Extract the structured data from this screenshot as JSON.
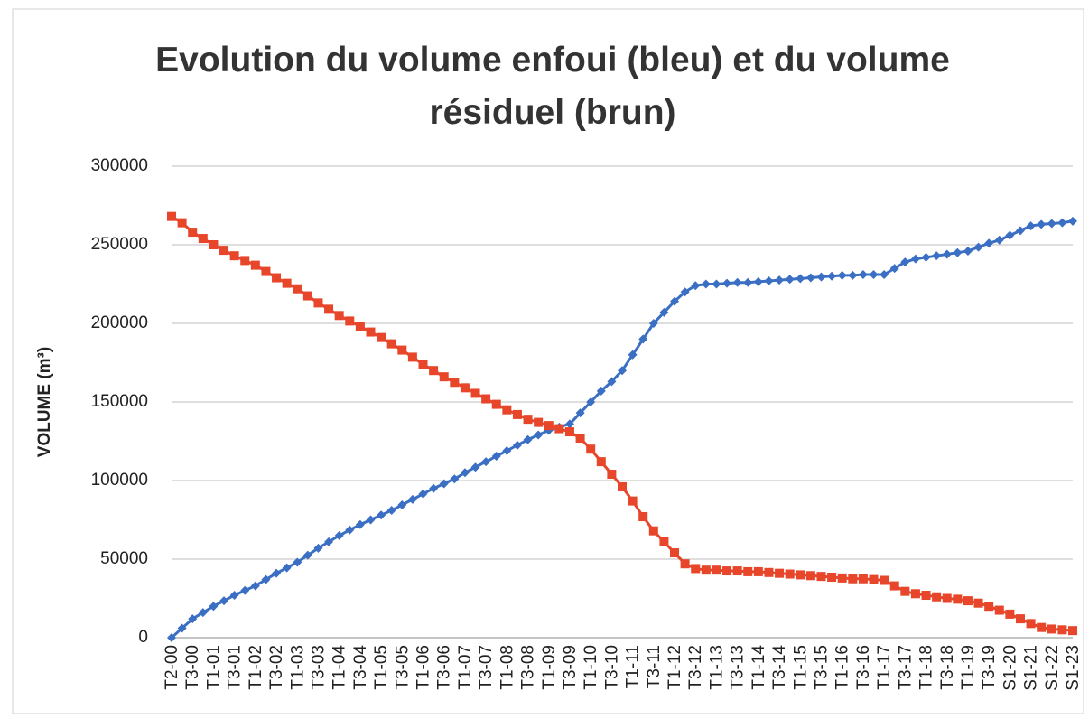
{
  "chart_data": {
    "type": "line",
    "title": "Evolution du volume enfoui (bleu) et du volume résiduel (brun)",
    "ylabel": "VOLUME  (m³)",
    "categories": [
      "T2-00",
      null,
      "T3-00",
      null,
      "T1-01",
      null,
      "T3-01",
      null,
      "T1-02",
      null,
      "T3-02",
      null,
      "T1-03",
      null,
      "T3-03",
      null,
      "T1-04",
      null,
      "T3-04",
      null,
      "T1-05",
      null,
      "T3-05",
      null,
      "T1-06",
      null,
      "T3-06",
      null,
      "T1-07",
      null,
      "T3-07",
      null,
      "T1-08",
      null,
      "T3-08",
      null,
      "T1-09",
      null,
      "T3-09",
      null,
      "T1-10",
      null,
      "T3-10",
      null,
      "T1-11",
      null,
      "T3-11",
      null,
      "T1-12",
      null,
      "T3-12",
      null,
      "T1-13",
      null,
      "T3-13",
      null,
      "T1-14",
      null,
      "T3-14",
      null,
      "T1-15",
      null,
      "T3-15",
      null,
      "T1-16",
      null,
      "T3-16",
      null,
      "T1-17",
      null,
      "T3-17",
      null,
      "T1-18",
      null,
      "T3-18",
      null,
      "T1-19",
      null,
      "T3-19",
      null,
      "S1-20",
      null,
      "S1-21",
      null,
      "S1-22",
      null,
      "S1-23"
    ],
    "series": [
      {
        "color": "#3b6fc4",
        "marker": "diamond",
        "values": [
          0,
          6000,
          12000,
          16000,
          20000,
          23500,
          27000,
          30000,
          33000,
          37000,
          41000,
          44500,
          48000,
          52500,
          57000,
          61000,
          65000,
          68500,
          72000,
          75000,
          78000,
          81000,
          84500,
          88000,
          91500,
          95000,
          98000,
          101000,
          105000,
          108500,
          112000,
          115500,
          119000,
          122500,
          126000,
          129000,
          132000,
          134000,
          136000,
          143000,
          150000,
          157000,
          163000,
          170000,
          180000,
          190000,
          200000,
          207000,
          214000,
          220000,
          224000,
          225000,
          225000,
          225500,
          226000,
          226000,
          226500,
          227000,
          227500,
          228000,
          228500,
          229000,
          229500,
          230000,
          230500,
          230500,
          231000,
          231000,
          231000,
          235000,
          239000,
          241000,
          242000,
          243000,
          244000,
          245000,
          246000,
          248500,
          251000,
          253000,
          256000,
          259000,
          262000,
          263000,
          263500,
          264000,
          265000
        ]
      },
      {
        "color": "#e8462a",
        "marker": "square",
        "values": [
          268000,
          264000,
          258000,
          254000,
          250000,
          246500,
          243000,
          240000,
          237000,
          233000,
          229000,
          225500,
          222000,
          217500,
          213000,
          209000,
          205000,
          201500,
          198000,
          194500,
          191000,
          187000,
          183000,
          178500,
          174000,
          170000,
          166000,
          162500,
          159000,
          155500,
          152000,
          148500,
          145000,
          142000,
          139000,
          137000,
          135000,
          133000,
          131000,
          127000,
          120000,
          112000,
          104000,
          96000,
          87000,
          77000,
          68000,
          61000,
          54000,
          47000,
          44000,
          43000,
          43000,
          42500,
          42500,
          42000,
          42000,
          41500,
          41000,
          40500,
          40000,
          39500,
          39000,
          38500,
          38000,
          37500,
          37500,
          37000,
          36500,
          33000,
          29500,
          28000,
          27000,
          26000,
          25000,
          24500,
          23500,
          22000,
          20000,
          17500,
          15000,
          12000,
          9000,
          6500,
          5500,
          5000,
          4500
        ]
      }
    ],
    "ylim": [
      0,
      300000
    ],
    "yticks": [
      0,
      50000,
      100000,
      150000,
      200000,
      250000,
      300000
    ],
    "grid": true
  }
}
